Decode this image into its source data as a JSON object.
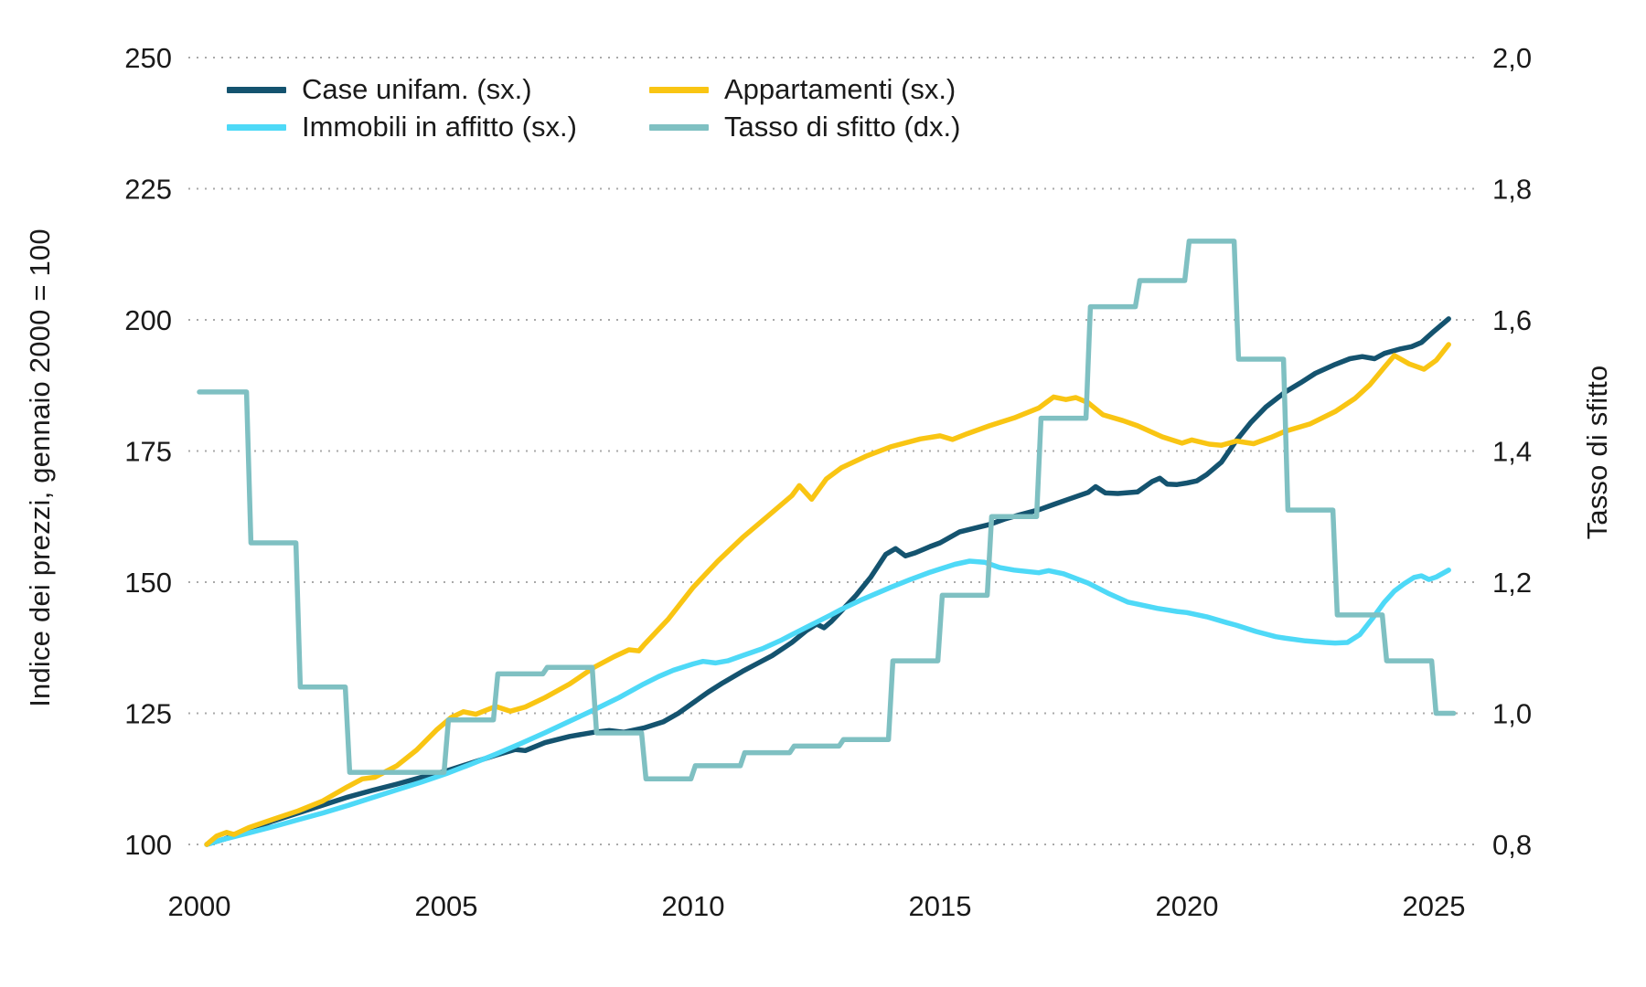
{
  "chart_data": {
    "type": "line",
    "title": "",
    "grid": "dotted-horizontal",
    "background": "#ffffff",
    "text_color": "#1a1a1a",
    "grid_color": "#a9a9a9",
    "left_axis": {
      "label": "Indice dei prezzi, gennaio 2000 = 100",
      "ticks": [
        100,
        125,
        150,
        175,
        200,
        225,
        250
      ],
      "tick_labels": [
        "100",
        "125",
        "150",
        "175",
        "200",
        "225",
        "250"
      ],
      "range": [
        100,
        250
      ]
    },
    "right_axis": {
      "label": "Tasso di sfitto",
      "ticks": [
        0.8,
        1.0,
        1.2,
        1.4,
        1.6,
        1.8,
        2.0
      ],
      "tick_labels": [
        "0,8",
        "1,0",
        "1,2",
        "1,4",
        "1,6",
        "1,8",
        "2,0"
      ],
      "range": [
        0.8,
        2.0
      ]
    },
    "x_axis": {
      "ticks": [
        2000,
        2005,
        2010,
        2015,
        2020,
        2025
      ],
      "tick_labels": [
        "2000",
        "2005",
        "2010",
        "2015",
        "2020",
        "2025"
      ],
      "range": [
        2000,
        2025.5
      ]
    },
    "series": [
      {
        "name": "Case unifam. (sx.)",
        "axis": "left",
        "color": "#14536f",
        "style": "line",
        "points": [
          [
            2000.15,
            100
          ],
          [
            2000.5,
            101
          ],
          [
            2001,
            102.8
          ],
          [
            2001.5,
            104.5
          ],
          [
            2002,
            106
          ],
          [
            2002.5,
            107.5
          ],
          [
            2003,
            109
          ],
          [
            2003.5,
            110.3
          ],
          [
            2004,
            111.5
          ],
          [
            2004.5,
            112.8
          ],
          [
            2005,
            114
          ],
          [
            2005.5,
            115.5
          ],
          [
            2006,
            117
          ],
          [
            2006.4,
            118.1
          ],
          [
            2006.6,
            117.9
          ],
          [
            2007,
            119.4
          ],
          [
            2007.5,
            120.6
          ],
          [
            2008,
            121.4
          ],
          [
            2008.3,
            121.7
          ],
          [
            2008.6,
            121.4
          ],
          [
            2009,
            122.2
          ],
          [
            2009.4,
            123.4
          ],
          [
            2009.7,
            125
          ],
          [
            2010,
            127
          ],
          [
            2010.3,
            129
          ],
          [
            2010.6,
            130.8
          ],
          [
            2011,
            133
          ],
          [
            2011.3,
            134.5
          ],
          [
            2011.6,
            136
          ],
          [
            2012,
            138.5
          ],
          [
            2012.3,
            140.8
          ],
          [
            2012.5,
            142
          ],
          [
            2012.65,
            141.3
          ],
          [
            2012.8,
            142.5
          ],
          [
            2013,
            144.5
          ],
          [
            2013.3,
            147.5
          ],
          [
            2013.6,
            151
          ],
          [
            2013.9,
            155.3
          ],
          [
            2014.1,
            156.4
          ],
          [
            2014.3,
            155
          ],
          [
            2014.5,
            155.6
          ],
          [
            2014.8,
            156.8
          ],
          [
            2015,
            157.5
          ],
          [
            2015.4,
            159.6
          ],
          [
            2015.7,
            160.3
          ],
          [
            2016,
            161
          ],
          [
            2016.3,
            162
          ],
          [
            2016.6,
            162.8
          ],
          [
            2017,
            163.8
          ],
          [
            2017.3,
            164.8
          ],
          [
            2017.6,
            165.8
          ],
          [
            2018,
            167.1
          ],
          [
            2018.15,
            168.2
          ],
          [
            2018.35,
            167
          ],
          [
            2018.6,
            166.9
          ],
          [
            2019,
            167.2
          ],
          [
            2019.3,
            169.2
          ],
          [
            2019.45,
            169.8
          ],
          [
            2019.6,
            168.7
          ],
          [
            2019.8,
            168.6
          ],
          [
            2020,
            168.9
          ],
          [
            2020.2,
            169.3
          ],
          [
            2020.4,
            170.5
          ],
          [
            2020.7,
            172.9
          ],
          [
            2021,
            177
          ],
          [
            2021.3,
            180.5
          ],
          [
            2021.6,
            183.4
          ],
          [
            2022,
            186.3
          ],
          [
            2022.3,
            188
          ],
          [
            2022.6,
            189.8
          ],
          [
            2023,
            191.5
          ],
          [
            2023.3,
            192.6
          ],
          [
            2023.55,
            193
          ],
          [
            2023.8,
            192.6
          ],
          [
            2024,
            193.6
          ],
          [
            2024.3,
            194.4
          ],
          [
            2024.55,
            194.9
          ],
          [
            2024.75,
            195.7
          ],
          [
            2025,
            197.8
          ],
          [
            2025.3,
            200.2
          ]
        ]
      },
      {
        "name": "Immobili in affitto (sx.)",
        "axis": "left",
        "color": "#4ed9f7",
        "style": "line",
        "points": [
          [
            2000.15,
            100
          ],
          [
            2000.5,
            101
          ],
          [
            2001,
            102.2
          ],
          [
            2001.5,
            103.4
          ],
          [
            2002,
            104.7
          ],
          [
            2002.5,
            106
          ],
          [
            2003,
            107.4
          ],
          [
            2003.5,
            108.9
          ],
          [
            2004,
            110.4
          ],
          [
            2004.5,
            111.9
          ],
          [
            2005,
            113.5
          ],
          [
            2005.5,
            115.3
          ],
          [
            2006,
            117.2
          ],
          [
            2006.5,
            119.2
          ],
          [
            2007,
            121.3
          ],
          [
            2007.5,
            123.5
          ],
          [
            2008,
            125.7
          ],
          [
            2008.5,
            128
          ],
          [
            2009,
            130.6
          ],
          [
            2009.3,
            132
          ],
          [
            2009.6,
            133.2
          ],
          [
            2010,
            134.4
          ],
          [
            2010.2,
            134.9
          ],
          [
            2010.45,
            134.6
          ],
          [
            2010.7,
            135
          ],
          [
            2011,
            136
          ],
          [
            2011.4,
            137.3
          ],
          [
            2011.8,
            139
          ],
          [
            2012,
            140
          ],
          [
            2012.4,
            141.9
          ],
          [
            2012.8,
            143.8
          ],
          [
            2013,
            144.8
          ],
          [
            2013.4,
            146.6
          ],
          [
            2013.8,
            148.2
          ],
          [
            2014,
            149
          ],
          [
            2014.4,
            150.5
          ],
          [
            2014.8,
            151.9
          ],
          [
            2015,
            152.5
          ],
          [
            2015.3,
            153.4
          ],
          [
            2015.6,
            154
          ],
          [
            2015.9,
            153.8
          ],
          [
            2016.2,
            152.8
          ],
          [
            2016.5,
            152.3
          ],
          [
            2017,
            151.8
          ],
          [
            2017.2,
            152.2
          ],
          [
            2017.5,
            151.6
          ],
          [
            2018,
            149.8
          ],
          [
            2018.4,
            147.9
          ],
          [
            2018.8,
            146.2
          ],
          [
            2019,
            145.8
          ],
          [
            2019.4,
            145
          ],
          [
            2019.8,
            144.4
          ],
          [
            2020,
            144.2
          ],
          [
            2020.4,
            143.4
          ],
          [
            2020.8,
            142.3
          ],
          [
            2021,
            141.8
          ],
          [
            2021.4,
            140.6
          ],
          [
            2021.8,
            139.6
          ],
          [
            2022,
            139.3
          ],
          [
            2022.4,
            138.8
          ],
          [
            2022.8,
            138.5
          ],
          [
            2023,
            138.4
          ],
          [
            2023.25,
            138.5
          ],
          [
            2023.5,
            140
          ],
          [
            2023.75,
            143
          ],
          [
            2024,
            146.2
          ],
          [
            2024.2,
            148.3
          ],
          [
            2024.4,
            149.7
          ],
          [
            2024.6,
            150.9
          ],
          [
            2024.75,
            151.2
          ],
          [
            2024.9,
            150.5
          ],
          [
            2025.05,
            151
          ],
          [
            2025.3,
            152.3
          ]
        ]
      },
      {
        "name": "Appartamenti (sx.)",
        "axis": "left",
        "color": "#f9c513",
        "style": "line",
        "points": [
          [
            2000.15,
            100
          ],
          [
            2000.35,
            101.6
          ],
          [
            2000.55,
            102.3
          ],
          [
            2000.7,
            101.9
          ],
          [
            2001,
            103.2
          ],
          [
            2001.5,
            104.8
          ],
          [
            2002,
            106.4
          ],
          [
            2002.5,
            108.3
          ],
          [
            2003,
            111
          ],
          [
            2003.3,
            112.5
          ],
          [
            2003.55,
            112.8
          ],
          [
            2004,
            115
          ],
          [
            2004.4,
            118
          ],
          [
            2004.8,
            121.8
          ],
          [
            2005.1,
            124.2
          ],
          [
            2005.35,
            125.3
          ],
          [
            2005.6,
            124.8
          ],
          [
            2006,
            126.3
          ],
          [
            2006.3,
            125.4
          ],
          [
            2006.6,
            126.2
          ],
          [
            2007,
            128
          ],
          [
            2007.5,
            130.6
          ],
          [
            2008,
            133.8
          ],
          [
            2008.4,
            135.8
          ],
          [
            2008.7,
            137.1
          ],
          [
            2008.9,
            136.9
          ],
          [
            2009,
            138
          ],
          [
            2009.5,
            143
          ],
          [
            2010,
            149
          ],
          [
            2010.5,
            154
          ],
          [
            2011,
            158.5
          ],
          [
            2011.5,
            162.5
          ],
          [
            2012,
            166.5
          ],
          [
            2012.15,
            168.4
          ],
          [
            2012.4,
            165.8
          ],
          [
            2012.7,
            169.7
          ],
          [
            2013,
            171.8
          ],
          [
            2013.5,
            174
          ],
          [
            2014,
            175.8
          ],
          [
            2014.6,
            177.3
          ],
          [
            2015,
            177.9
          ],
          [
            2015.25,
            177.2
          ],
          [
            2015.55,
            178.3
          ],
          [
            2016,
            179.8
          ],
          [
            2016.5,
            181.3
          ],
          [
            2017,
            183.2
          ],
          [
            2017.3,
            185.3
          ],
          [
            2017.55,
            184.8
          ],
          [
            2017.75,
            185.2
          ],
          [
            2018,
            184.2
          ],
          [
            2018.3,
            181.9
          ],
          [
            2018.7,
            180.8
          ],
          [
            2019,
            179.8
          ],
          [
            2019.5,
            177.7
          ],
          [
            2019.9,
            176.5
          ],
          [
            2020.1,
            177.1
          ],
          [
            2020.45,
            176.3
          ],
          [
            2020.7,
            176.1
          ],
          [
            2021,
            176.9
          ],
          [
            2021.35,
            176.4
          ],
          [
            2021.7,
            177.6
          ],
          [
            2022,
            178.8
          ],
          [
            2022.5,
            180.2
          ],
          [
            2023,
            182.5
          ],
          [
            2023.4,
            185
          ],
          [
            2023.7,
            187.6
          ],
          [
            2024,
            191
          ],
          [
            2024.2,
            193.2
          ],
          [
            2024.5,
            191.6
          ],
          [
            2024.8,
            190.6
          ],
          [
            2025.05,
            192.3
          ],
          [
            2025.3,
            195.3
          ]
        ]
      },
      {
        "name": "Tasso di sfitto (dx.)",
        "axis": "right",
        "color": "#7fc0c2",
        "style": "step",
        "start_year": 2000,
        "end_t": 2025.4,
        "yearly_values": [
          1.49,
          1.26,
          1.04,
          0.91,
          0.91,
          0.99,
          1.06,
          1.07,
          0.97,
          0.9,
          0.92,
          0.94,
          0.95,
          0.96,
          1.08,
          1.18,
          1.3,
          1.45,
          1.62,
          1.66,
          1.72,
          1.54,
          1.31,
          1.15,
          1.08,
          1.0
        ]
      }
    ],
    "legend_position": "top-left-two-columns"
  },
  "legend": {
    "items": [
      {
        "label": "Case unifam. (sx.)",
        "color": "#14536f"
      },
      {
        "label": "Immobili in affitto (sx.)",
        "color": "#4ed9f7"
      },
      {
        "label": "Appartamenti (sx.)",
        "color": "#f9c513"
      },
      {
        "label": "Tasso di sfitto (dx.)",
        "color": "#7fc0c2"
      }
    ]
  }
}
